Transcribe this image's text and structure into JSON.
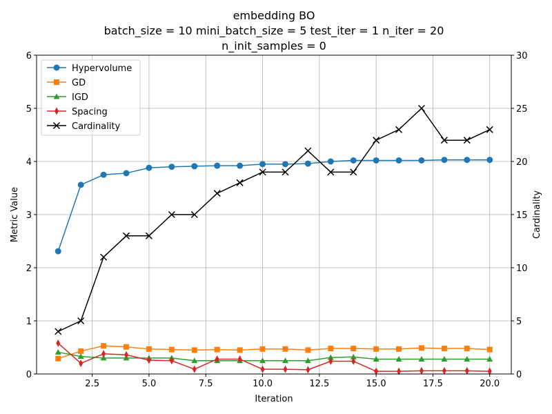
{
  "chart_data": {
    "type": "line",
    "title_lines": [
      "embedding BO",
      "batch_size = 10 mini_batch_size = 5 test_iter = 1 n_iter = 20",
      "n_init_samples = 0"
    ],
    "xlabel": "Iteration",
    "ylabel": "Metric Value",
    "y2label": "Cardinality",
    "xlim": [
      0.05,
      20.95
    ],
    "ylim": [
      0,
      6
    ],
    "y2lim": [
      0,
      30
    ],
    "x_ticks": [
      2.5,
      5.0,
      7.5,
      10.0,
      12.5,
      15.0,
      17.5,
      20.0
    ],
    "x_tick_labels": [
      "2.5",
      "5.0",
      "7.5",
      "10.0",
      "12.5",
      "15.0",
      "17.5",
      "20.0"
    ],
    "y_ticks": [
      0,
      1,
      2,
      3,
      4,
      5,
      6
    ],
    "y_tick_labels": [
      "0",
      "1",
      "2",
      "3",
      "4",
      "5",
      "6"
    ],
    "y2_ticks": [
      0,
      5,
      10,
      15,
      20,
      25,
      30
    ],
    "y2_tick_labels": [
      "0",
      "5",
      "10",
      "15",
      "20",
      "25",
      "30"
    ],
    "grid": true,
    "legend_position": "top-left",
    "x": [
      1,
      2,
      3,
      4,
      5,
      6,
      7,
      8,
      9,
      10,
      11,
      12,
      13,
      14,
      15,
      16,
      17,
      18,
      19,
      20
    ],
    "series": [
      {
        "name": "Hypervolume",
        "axis": "left",
        "color": "#1f77b4",
        "marker": "circle",
        "values": [
          2.31,
          3.56,
          3.75,
          3.78,
          3.88,
          3.9,
          3.91,
          3.92,
          3.92,
          3.95,
          3.95,
          3.96,
          4.0,
          4.02,
          4.02,
          4.02,
          4.02,
          4.03,
          4.03,
          4.03
        ]
      },
      {
        "name": "GD",
        "axis": "left",
        "color": "#ff7f0e",
        "marker": "square",
        "values": [
          0.29,
          0.43,
          0.53,
          0.51,
          0.47,
          0.46,
          0.45,
          0.46,
          0.45,
          0.47,
          0.47,
          0.45,
          0.48,
          0.48,
          0.47,
          0.47,
          0.49,
          0.48,
          0.48,
          0.46
        ]
      },
      {
        "name": "IGD",
        "axis": "left",
        "color": "#2ca02c",
        "marker": "triangle",
        "values": [
          0.41,
          0.33,
          0.3,
          0.3,
          0.3,
          0.3,
          0.25,
          0.25,
          0.25,
          0.25,
          0.25,
          0.25,
          0.31,
          0.32,
          0.28,
          0.28,
          0.28,
          0.28,
          0.28,
          0.28
        ]
      },
      {
        "name": "Spacing",
        "axis": "left",
        "color": "#d62728",
        "marker": "diamond",
        "values": [
          0.58,
          0.2,
          0.38,
          0.36,
          0.26,
          0.25,
          0.09,
          0.28,
          0.28,
          0.09,
          0.09,
          0.08,
          0.24,
          0.24,
          0.05,
          0.05,
          0.06,
          0.06,
          0.06,
          0.05
        ]
      },
      {
        "name": "Cardinality",
        "axis": "right",
        "color": "#000000",
        "marker": "x",
        "values": [
          4,
          5,
          11,
          13,
          13,
          15,
          15,
          17,
          18,
          19,
          19,
          21,
          19,
          19,
          22,
          23,
          25,
          22,
          22,
          23
        ]
      }
    ]
  }
}
